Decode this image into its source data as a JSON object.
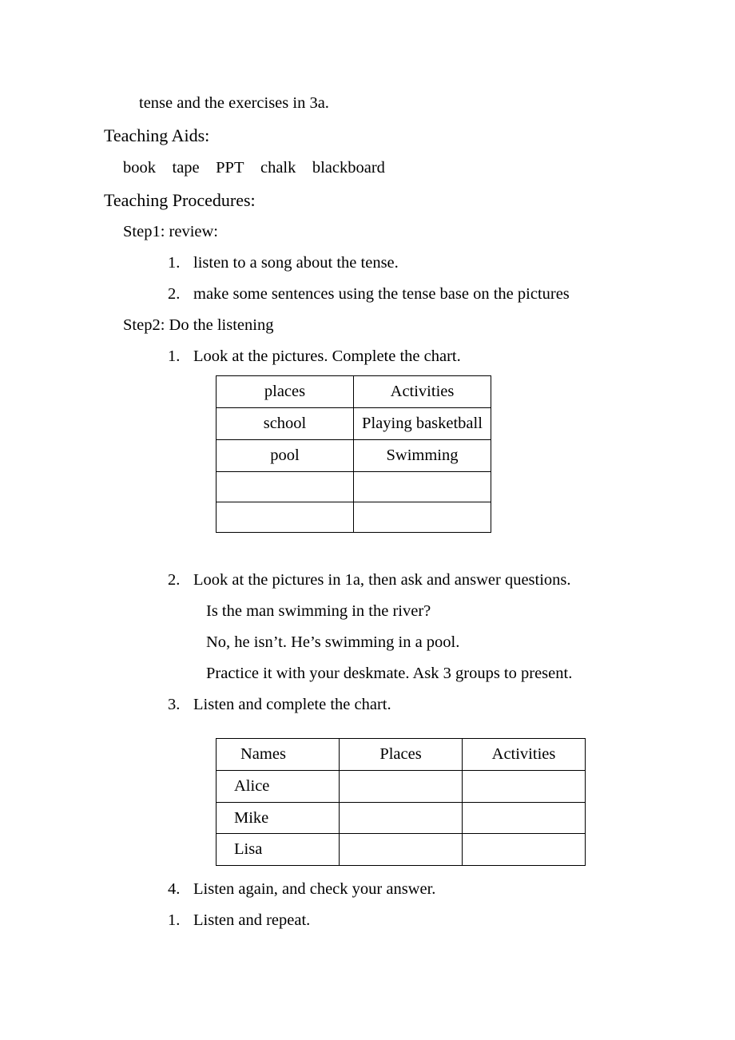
{
  "top_line": "tense and the exercises in 3a.",
  "aids_heading": "Teaching Aids:",
  "aids_text": "book tape PPT chalk blackboard",
  "proc_heading": "Teaching Procedures:",
  "step1_label": "Step1: review:",
  "step1_items": [
    {
      "num": "1.",
      "text": "listen to a song about the tense."
    },
    {
      "num": "2.",
      "text": "make some sentences using the tense base on the pictures"
    }
  ],
  "step2_label": "Step2: Do the listening",
  "step2_item1": {
    "num": "1.",
    "text": "Look at the pictures. Complete the chart."
  },
  "table1": {
    "rows": [
      [
        "places",
        "Activities"
      ],
      [
        "school",
        "Playing basketball"
      ],
      [
        "pool",
        "Swimming"
      ],
      [
        "",
        ""
      ],
      [
        "",
        ""
      ]
    ]
  },
  "step2_item2": {
    "num": "2.",
    "text": "Look at the pictures in 1a, then ask and answer questions."
  },
  "q2_lines": [
    "Is the man swimming in the river?",
    "No, he isn’t. He’s swimming in a pool.",
    "Practice it with your deskmate. Ask 3 groups to present."
  ],
  "step2_item3": {
    "num": "3.",
    "text": "Listen and complete the chart."
  },
  "table2": {
    "rows": [
      [
        "Names",
        "Places",
        "Activities"
      ],
      [
        "Alice",
        "",
        ""
      ],
      [
        "Mike",
        "",
        ""
      ],
      [
        "Lisa",
        "",
        ""
      ]
    ]
  },
  "step2_item4": {
    "num": "4.",
    "text": " Listen again, and check your answer."
  },
  "step2_item5": {
    "num": "1.",
    "text": "Listen and repeat."
  }
}
